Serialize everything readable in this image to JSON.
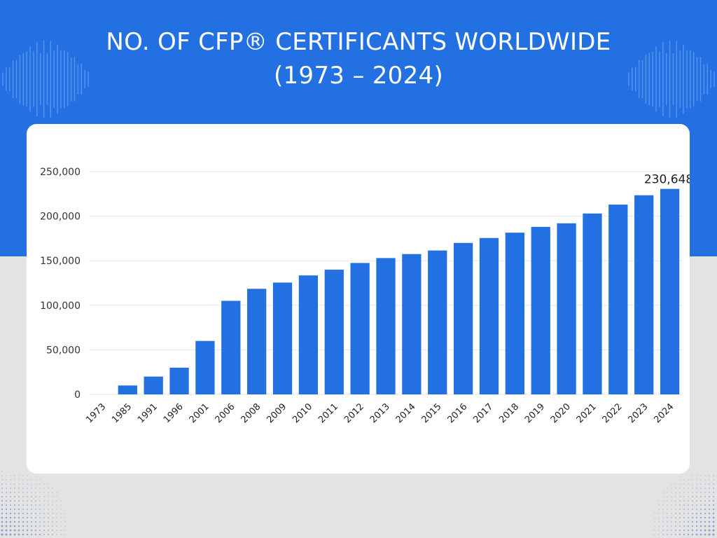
{
  "header": {
    "title_line1": "NO. OF CFP® CERTIFICANTS WORLDWIDE",
    "title_line2": "(1973 – 2024)"
  },
  "colors": {
    "background_top": "#2370e3",
    "background_bottom": "#e3e3e3",
    "bar": "#2370e3",
    "card": "#ffffff"
  },
  "chart_data": {
    "type": "bar",
    "title": "NO. OF CFP® CERTIFICANTS WORLDWIDE (1973 – 2024)",
    "xlabel": "",
    "ylabel": "",
    "categories": [
      "1973",
      "1985",
      "1991",
      "1996",
      "2001",
      "2006",
      "2008",
      "2009",
      "2010",
      "2011",
      "2012",
      "2013",
      "2014",
      "2015",
      "2016",
      "2017",
      "2018",
      "2019",
      "2020",
      "2021",
      "2022",
      "2023",
      "2024"
    ],
    "values": [
      0,
      10000,
      20000,
      30000,
      60000,
      105000,
      118500,
      125500,
      133500,
      140000,
      147500,
      153000,
      157500,
      161500,
      170000,
      175500,
      181500,
      188000,
      192000,
      203000,
      213000,
      223500,
      230648
    ],
    "ylim": [
      0,
      250000
    ],
    "yticks": [
      0,
      50000,
      100000,
      150000,
      200000,
      250000
    ],
    "ytick_labels": [
      "0",
      "50,000",
      "100,000",
      "150,000",
      "200,000",
      "250,000"
    ],
    "annotations": [
      {
        "category": "2024",
        "label": "230,648"
      }
    ],
    "grid": true,
    "legend": "none"
  }
}
